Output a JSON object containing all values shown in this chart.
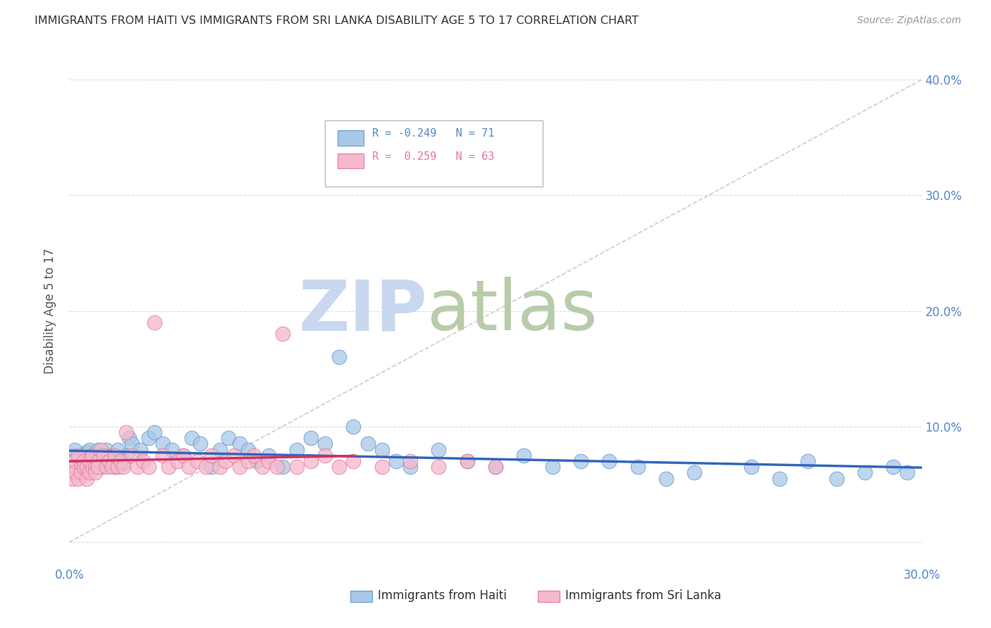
{
  "title": "IMMIGRANTS FROM HAITI VS IMMIGRANTS FROM SRI LANKA DISABILITY AGE 5 TO 17 CORRELATION CHART",
  "source": "Source: ZipAtlas.com",
  "ylabel": "Disability Age 5 to 17",
  "legend_haiti": "Immigrants from Haiti",
  "legend_srilanka": "Immigrants from Sri Lanka",
  "haiti_R": -0.249,
  "haiti_N": 71,
  "srilanka_R": 0.259,
  "srilanka_N": 63,
  "xlim": [
    0.0,
    0.3
  ],
  "ylim": [
    -0.02,
    0.42
  ],
  "plot_ylim": [
    0.0,
    0.4
  ],
  "xtick_vals": [
    0.0,
    0.05,
    0.1,
    0.15,
    0.2,
    0.25,
    0.3
  ],
  "xtick_labels": [
    "0.0%",
    "",
    "",
    "",
    "",
    "",
    "30.0%"
  ],
  "ytick_vals": [
    0.0,
    0.1,
    0.2,
    0.3,
    0.4
  ],
  "ytick_labels_right": [
    "",
    "10.0%",
    "20.0%",
    "30.0%",
    "40.0%"
  ],
  "haiti_color": "#a8c8e8",
  "haiti_edge": "#6699cc",
  "srilanka_color": "#f5b8cc",
  "srilanka_edge": "#e87898",
  "haiti_trend_color": "#3366bb",
  "srilanka_trend_color": "#cc3366",
  "diagonal_color": "#cccccc",
  "watermark_zip_color": "#c8d8ee",
  "watermark_atlas_color": "#c8d8cc",
  "title_color": "#333333",
  "axis_color": "#5588cc",
  "haiti_x": [
    0.001,
    0.002,
    0.003,
    0.004,
    0.005,
    0.005,
    0.006,
    0.006,
    0.007,
    0.007,
    0.008,
    0.008,
    0.009,
    0.009,
    0.01,
    0.01,
    0.011,
    0.011,
    0.012,
    0.013,
    0.014,
    0.015,
    0.016,
    0.017,
    0.018,
    0.019,
    0.02,
    0.021,
    0.022,
    0.025,
    0.028,
    0.03,
    0.033,
    0.036,
    0.04,
    0.043,
    0.046,
    0.05,
    0.053,
    0.056,
    0.06,
    0.063,
    0.066,
    0.07,
    0.075,
    0.08,
    0.085,
    0.09,
    0.095,
    0.1,
    0.105,
    0.11,
    0.115,
    0.12,
    0.13,
    0.14,
    0.15,
    0.16,
    0.17,
    0.18,
    0.19,
    0.2,
    0.21,
    0.22,
    0.24,
    0.25,
    0.26,
    0.27,
    0.28,
    0.29,
    0.295
  ],
  "haiti_y": [
    0.075,
    0.08,
    0.072,
    0.068,
    0.075,
    0.065,
    0.078,
    0.062,
    0.08,
    0.07,
    0.075,
    0.065,
    0.072,
    0.068,
    0.08,
    0.07,
    0.075,
    0.065,
    0.072,
    0.08,
    0.07,
    0.075,
    0.065,
    0.08,
    0.072,
    0.068,
    0.075,
    0.09,
    0.085,
    0.08,
    0.09,
    0.095,
    0.085,
    0.08,
    0.075,
    0.09,
    0.085,
    0.065,
    0.08,
    0.09,
    0.085,
    0.08,
    0.07,
    0.075,
    0.065,
    0.08,
    0.09,
    0.085,
    0.16,
    0.1,
    0.085,
    0.08,
    0.07,
    0.065,
    0.08,
    0.07,
    0.065,
    0.075,
    0.065,
    0.07,
    0.07,
    0.065,
    0.055,
    0.06,
    0.065,
    0.055,
    0.07,
    0.055,
    0.06,
    0.065,
    0.06
  ],
  "srilanka_x": [
    0.001,
    0.001,
    0.002,
    0.002,
    0.003,
    0.003,
    0.004,
    0.004,
    0.005,
    0.005,
    0.006,
    0.006,
    0.007,
    0.007,
    0.008,
    0.008,
    0.009,
    0.009,
    0.01,
    0.01,
    0.011,
    0.012,
    0.013,
    0.014,
    0.015,
    0.016,
    0.017,
    0.018,
    0.019,
    0.02,
    0.022,
    0.024,
    0.026,
    0.028,
    0.03,
    0.033,
    0.035,
    0.038,
    0.04,
    0.042,
    0.045,
    0.048,
    0.05,
    0.053,
    0.055,
    0.058,
    0.06,
    0.063,
    0.065,
    0.068,
    0.07,
    0.073,
    0.075,
    0.08,
    0.085,
    0.09,
    0.095,
    0.1,
    0.11,
    0.12,
    0.13,
    0.14,
    0.15
  ],
  "srilanka_y": [
    0.065,
    0.055,
    0.07,
    0.06,
    0.075,
    0.055,
    0.065,
    0.06,
    0.07,
    0.065,
    0.065,
    0.055,
    0.07,
    0.06,
    0.075,
    0.065,
    0.065,
    0.06,
    0.07,
    0.065,
    0.08,
    0.075,
    0.065,
    0.07,
    0.065,
    0.075,
    0.065,
    0.07,
    0.065,
    0.095,
    0.075,
    0.065,
    0.07,
    0.065,
    0.19,
    0.075,
    0.065,
    0.07,
    0.075,
    0.065,
    0.07,
    0.065,
    0.075,
    0.065,
    0.07,
    0.075,
    0.065,
    0.07,
    0.075,
    0.065,
    0.07,
    0.065,
    0.18,
    0.065,
    0.07,
    0.075,
    0.065,
    0.07,
    0.065,
    0.07,
    0.065,
    0.07,
    0.065
  ]
}
